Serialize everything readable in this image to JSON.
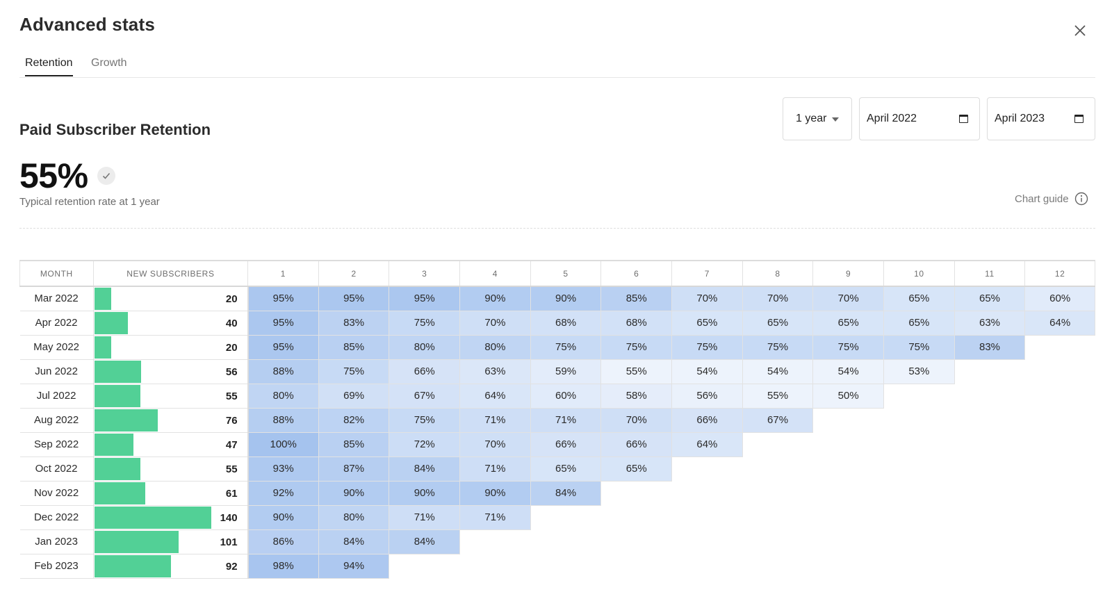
{
  "header": {
    "title": "Advanced stats"
  },
  "tabs": [
    {
      "label": "Retention",
      "active": true
    },
    {
      "label": "Growth",
      "active": false
    }
  ],
  "section_title": "Paid Subscriber Retention",
  "controls": {
    "range": "1 year",
    "from": "April 2022",
    "to": "April 2023"
  },
  "summary": {
    "value": "55%",
    "caption": "Typical retention rate at 1 year"
  },
  "chart_guide": {
    "label": "Chart guide"
  },
  "colors": {
    "bar": "#52d096",
    "heat_strong": "#a5c3ee",
    "heat_weak": "#edf3fc"
  },
  "icons": [
    "close-icon",
    "check-icon",
    "caret-down-icon",
    "calendar-icon",
    "info-icon"
  ],
  "chart_data": {
    "type": "heatmap",
    "columns": [
      "MONTH",
      "NEW SUBSCRIBERS",
      "1",
      "2",
      "3",
      "4",
      "5",
      "6",
      "7",
      "8",
      "9",
      "10",
      "11",
      "12"
    ],
    "max_subscribers": 140,
    "rows": [
      {
        "month": "Mar 2022",
        "subscribers": 20,
        "retention": [
          "95%",
          "95%",
          "95%",
          "90%",
          "90%",
          "85%",
          "70%",
          "70%",
          "70%",
          "65%",
          "65%",
          "60%"
        ]
      },
      {
        "month": "Apr 2022",
        "subscribers": 40,
        "retention": [
          "95%",
          "83%",
          "75%",
          "70%",
          "68%",
          "68%",
          "65%",
          "65%",
          "65%",
          "65%",
          "63%",
          "64%"
        ]
      },
      {
        "month": "May 2022",
        "subscribers": 20,
        "retention": [
          "95%",
          "85%",
          "80%",
          "80%",
          "75%",
          "75%",
          "75%",
          "75%",
          "75%",
          "75%",
          "83%"
        ]
      },
      {
        "month": "Jun 2022",
        "subscribers": 56,
        "retention": [
          "88%",
          "75%",
          "66%",
          "63%",
          "59%",
          "55%",
          "54%",
          "54%",
          "54%",
          "53%"
        ]
      },
      {
        "month": "Jul 2022",
        "subscribers": 55,
        "retention": [
          "80%",
          "69%",
          "67%",
          "64%",
          "60%",
          "58%",
          "56%",
          "55%",
          "50%"
        ]
      },
      {
        "month": "Aug 2022",
        "subscribers": 76,
        "retention": [
          "88%",
          "82%",
          "75%",
          "71%",
          "71%",
          "70%",
          "66%",
          "67%"
        ]
      },
      {
        "month": "Sep 2022",
        "subscribers": 47,
        "retention": [
          "100%",
          "85%",
          "72%",
          "70%",
          "66%",
          "66%",
          "64%"
        ]
      },
      {
        "month": "Oct 2022",
        "subscribers": 55,
        "retention": [
          "93%",
          "87%",
          "84%",
          "71%",
          "65%",
          "65%"
        ]
      },
      {
        "month": "Nov 2022",
        "subscribers": 61,
        "retention": [
          "92%",
          "90%",
          "90%",
          "90%",
          "84%"
        ]
      },
      {
        "month": "Dec 2022",
        "subscribers": 140,
        "retention": [
          "90%",
          "80%",
          "71%",
          "71%"
        ]
      },
      {
        "month": "Jan 2023",
        "subscribers": 101,
        "retention": [
          "86%",
          "84%",
          "84%"
        ]
      },
      {
        "month": "Feb 2023",
        "subscribers": 92,
        "retention": [
          "98%",
          "94%"
        ]
      }
    ]
  }
}
